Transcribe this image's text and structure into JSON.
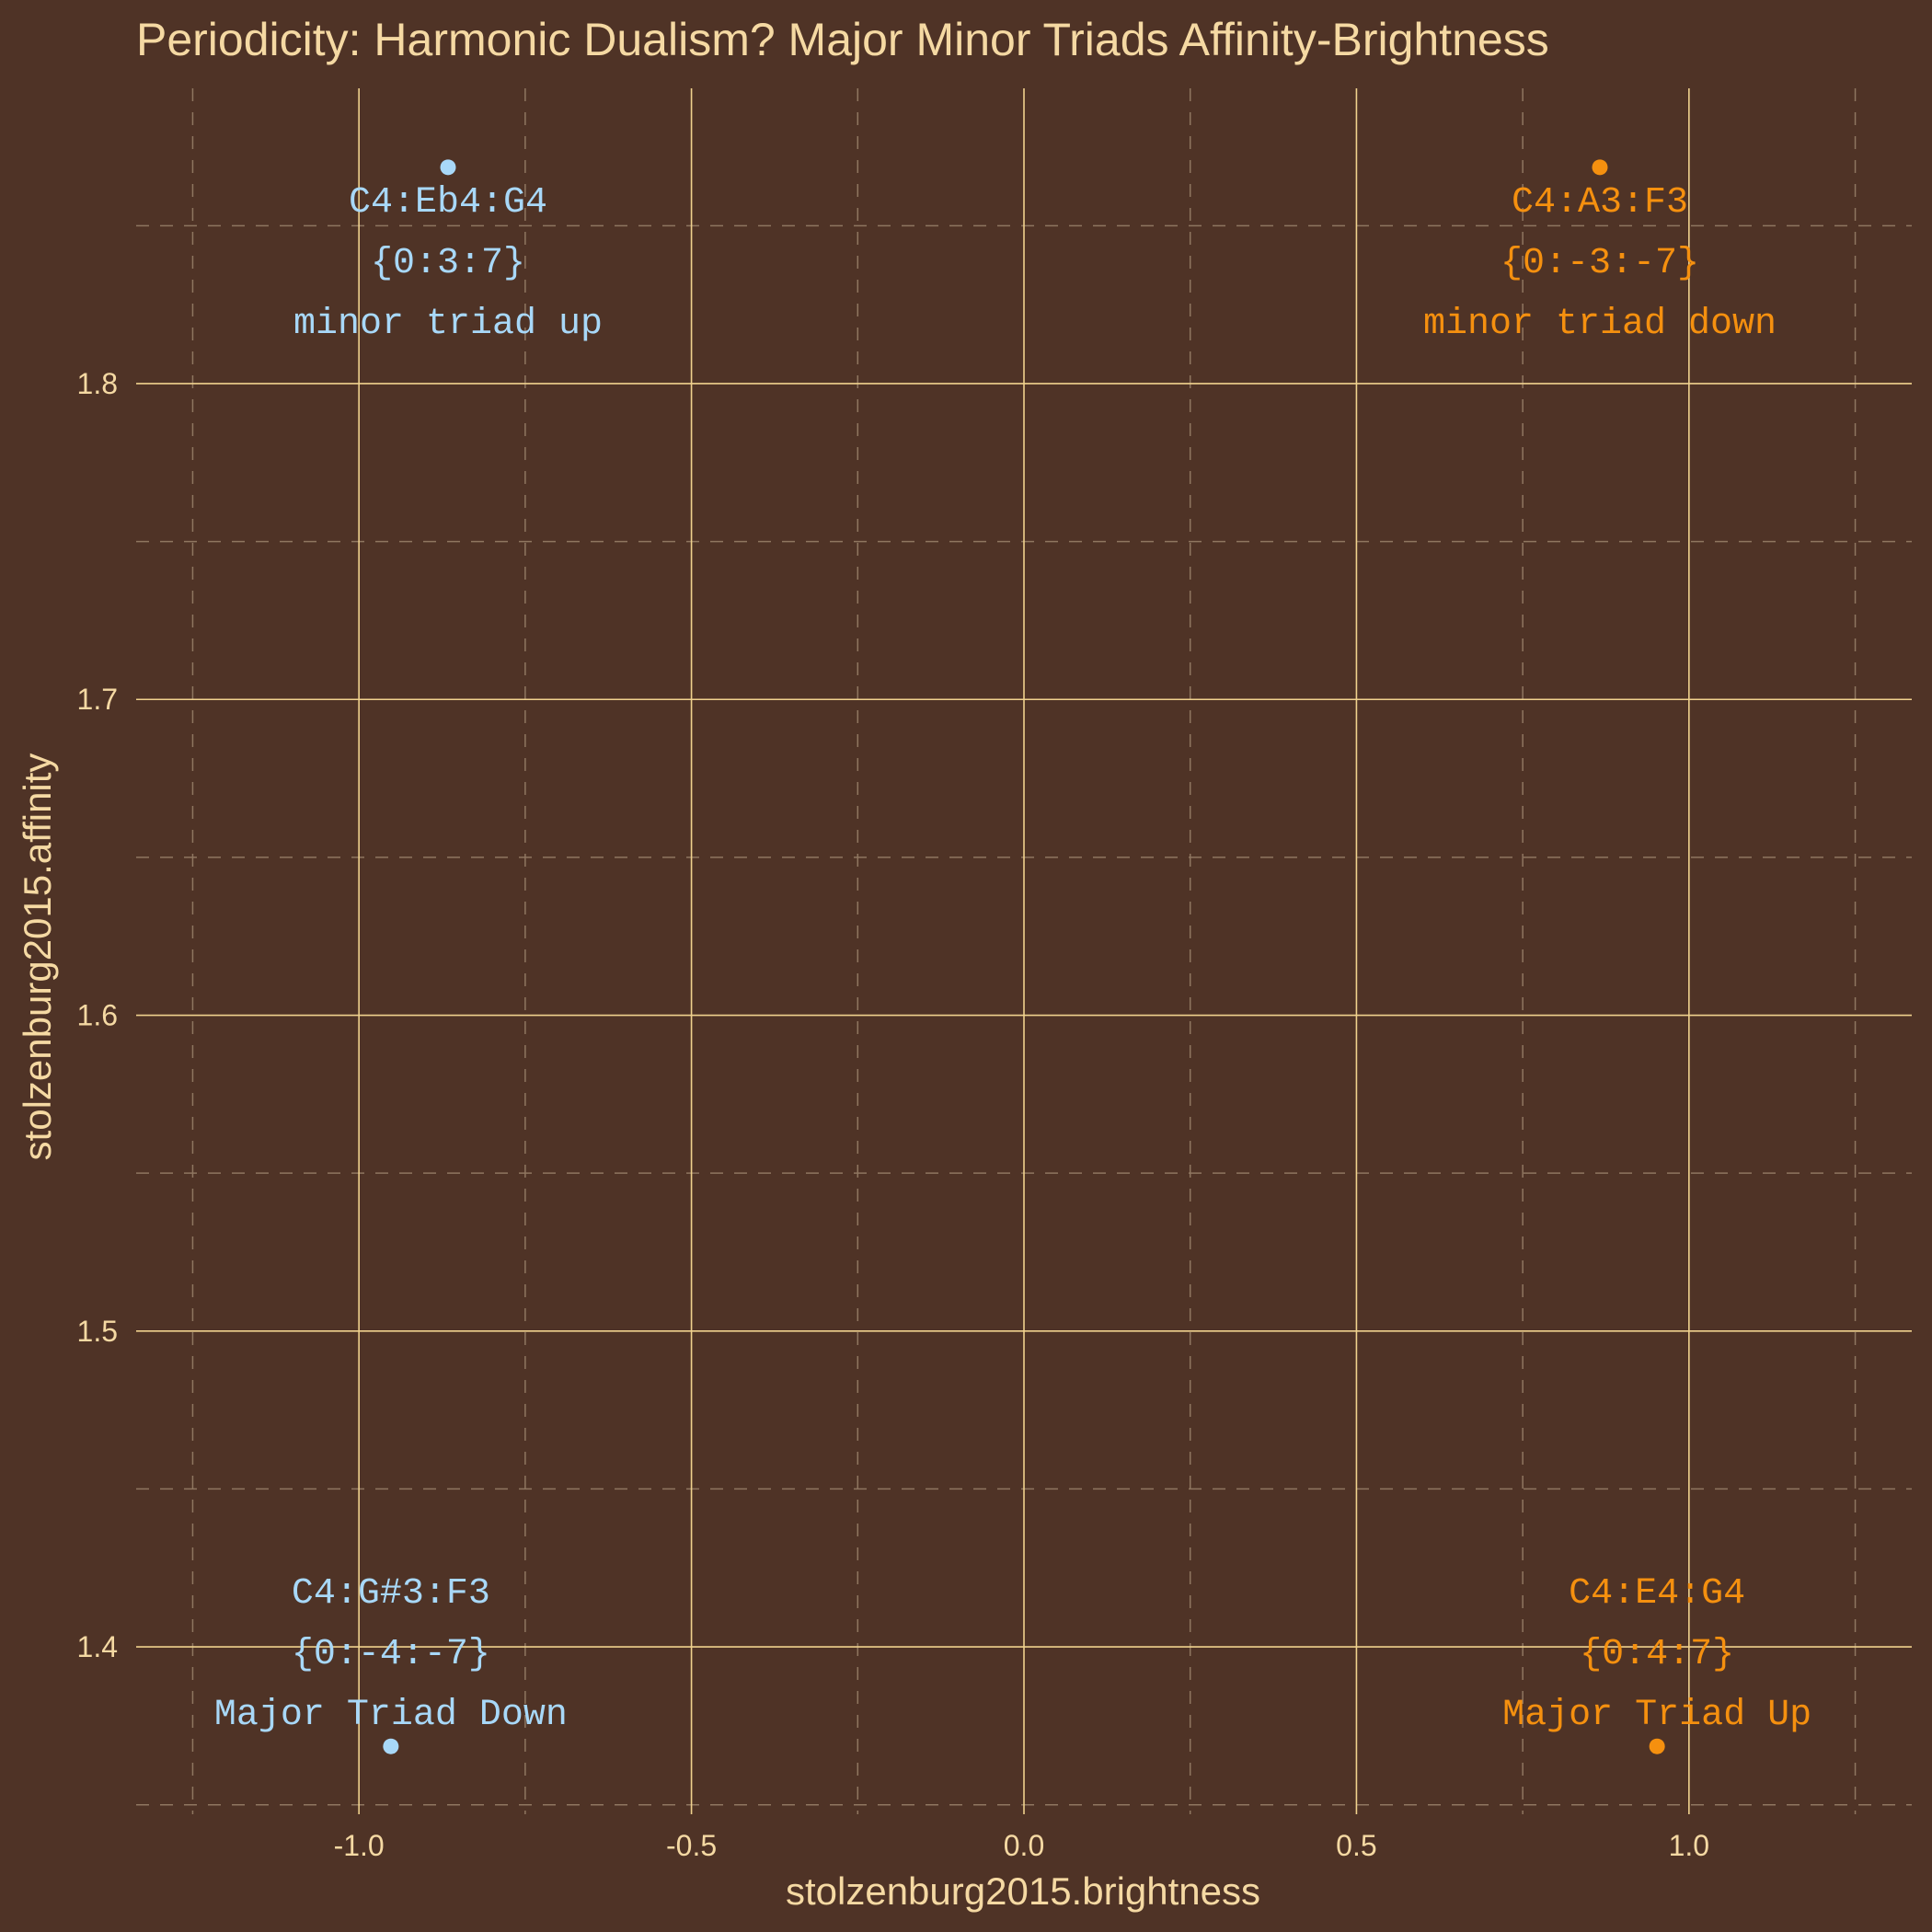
{
  "chart_data": {
    "type": "scatter",
    "title": "Periodicity: Harmonic Dualism? Major Minor Triads Affinity-Brightness",
    "xlabel": "stolzenburg2015.brightness",
    "ylabel": "stolzenburg2015.affinity",
    "xlim": [
      -1.335,
      1.335
    ],
    "ylim": [
      1.347,
      1.8935
    ],
    "x_ticks": [
      "-1.0",
      "-0.5",
      "0.0",
      "0.5",
      "1.0"
    ],
    "x_tick_values": [
      -1.0,
      -0.5,
      0.0,
      0.5,
      1.0
    ],
    "y_ticks": [
      "1.4",
      "1.5",
      "1.6",
      "1.7",
      "1.8"
    ],
    "y_tick_values": [
      1.4,
      1.5,
      1.6,
      1.7,
      1.8
    ],
    "x_minor": [
      -1.25,
      -0.75,
      -0.25,
      0.25,
      0.75,
      1.25
    ],
    "y_minor": [
      1.35,
      1.45,
      1.55,
      1.65,
      1.75,
      1.85
    ],
    "grid": true,
    "legend": "none",
    "points": [
      {
        "x": -0.866,
        "y": 1.8685,
        "color": "#a8d8f8",
        "lines": [
          "C4:Eb4:G4",
          "{0:3:7}",
          "minor triad up"
        ],
        "label_pos": "below"
      },
      {
        "x": 0.866,
        "y": 1.8685,
        "color": "#f5900f",
        "lines": [
          "C4:A3:F3",
          "{0:-3:-7}",
          "minor triad down"
        ],
        "label_pos": "below"
      },
      {
        "x": -0.952,
        "y": 1.3685,
        "color": "#a8d8f8",
        "lines": [
          "C4:G#3:F3",
          "{0:-4:-7}",
          "Major Triad Down"
        ],
        "label_pos": "above"
      },
      {
        "x": 0.952,
        "y": 1.3685,
        "color": "#f5900f",
        "lines": [
          "C4:E4:G4",
          "{0:4:7}",
          "Major Triad Up"
        ],
        "label_pos": "above"
      }
    ]
  },
  "theme": {
    "background": "#4f3326",
    "text_color": "#f5d9a3",
    "grid_major": "#f0d28e",
    "grid_minor": "#8f7660"
  }
}
